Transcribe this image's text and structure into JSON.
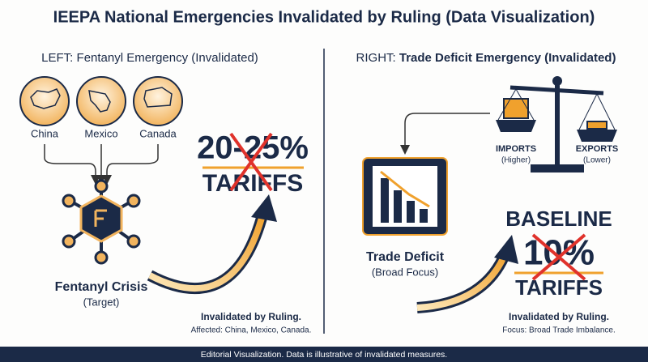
{
  "title": "IEEPA National Emergencies Invalidated by Ruling (Data Visualization)",
  "left": {
    "heading_prefix": "LEFT:",
    "heading": "Fentanyl Emergency (Invalidated)",
    "countries": [
      "China",
      "Mexico",
      "Canada"
    ],
    "node": {
      "label": "Fentanyl Crisis",
      "sublabel": "(Target)"
    },
    "tariff": {
      "rate": "20-25%",
      "label": "TARIFFS"
    },
    "note": {
      "title": "Invalidated by Ruling.",
      "text": "Affected: China, Mexico, Canada."
    }
  },
  "right": {
    "heading_prefix": "RIGHT:",
    "heading": "Trade Deficit Emergency (Invalidated)",
    "scale": {
      "left": {
        "label": "IMPORTS",
        "sublabel": "(Higher)"
      },
      "right": {
        "label": "EXPORTS",
        "sublabel": "(Lower)"
      }
    },
    "node": {
      "label": "Trade Deficit",
      "sublabel": "(Broad Focus)"
    },
    "tariff": {
      "top": "BASELINE",
      "rate": "10%",
      "label": "TARIFFS"
    },
    "note": {
      "title": "Invalidated by Ruling.",
      "text": "Focus: Broad Trade Imbalance."
    }
  },
  "footer": "Editorial Visualization. Data is illustrative of invalidated measures."
}
